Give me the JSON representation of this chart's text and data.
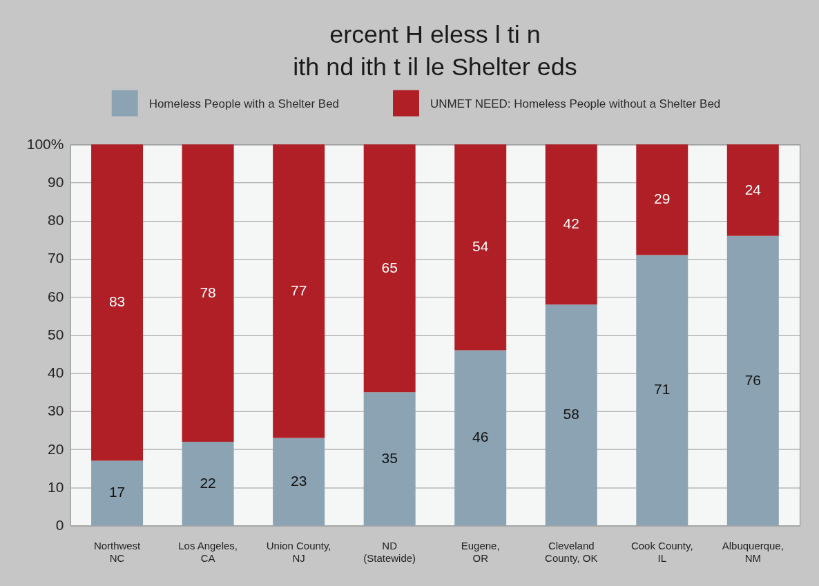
{
  "chart_data": {
    "type": "bar",
    "title": "ercent H eless l ti n\nith nd ith t il le Shelter eds",
    "categories": [
      "Northwest\nNC",
      "Los Angeles,\nCA",
      "Union County,\nNJ",
      "ND\n(Statewide)",
      "Eugene,\nOR",
      "Cleveland\nCounty, OK",
      "Cook County,\nIL",
      "Albuquerque,\nNM"
    ],
    "series": [
      {
        "name": "Homeless People with a Shelter Bed",
        "color": "#8ca3b3",
        "values": [
          17,
          22,
          23,
          35,
          46,
          58,
          71,
          76
        ]
      },
      {
        "name": "UNMET NEED: Homeless People without a Shelter Bed",
        "color": "#b01f25",
        "values": [
          83,
          78,
          77,
          65,
          54,
          42,
          29,
          24
        ]
      }
    ],
    "stacked": true,
    "ylim": [
      0,
      100
    ],
    "yticks": [
      0,
      10,
      20,
      30,
      40,
      50,
      60,
      70,
      80,
      90,
      {
        "value": 100,
        "label": "100%"
      }
    ],
    "grid": "y",
    "legend": "top",
    "data_labels": true
  }
}
